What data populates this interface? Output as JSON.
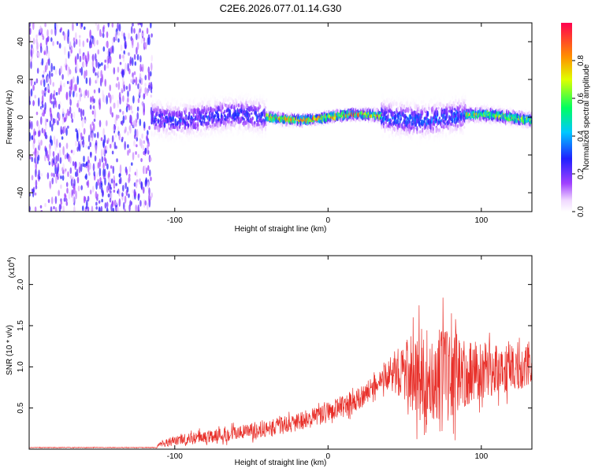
{
  "title": "C2E6.2026.077.01.14.G30",
  "chart_data": [
    {
      "type": "heatmap",
      "name": "spectrogram",
      "xlabel": "Height of straight line (km)",
      "ylabel": "Frequency (Hz)",
      "xlim": [
        -195,
        133
      ],
      "ylim": [
        -50,
        50
      ],
      "x_ticks": [
        -100,
        0,
        100
      ],
      "y_ticks": [
        -40,
        -20,
        0,
        20,
        40
      ],
      "x_tick_labels": [
        "-100",
        "0",
        "100"
      ],
      "y_tick_labels": [
        "-40",
        "-20",
        "0",
        "20",
        "40"
      ],
      "colorbar": {
        "label": "Normalized spectral amplitude",
        "range": [
          0.0,
          1.0
        ],
        "ticks": [
          0.0,
          0.2,
          0.4,
          0.6,
          0.8
        ],
        "tick_labels": [
          "0.0",
          "0.2",
          "0.4",
          "0.6",
          "0.8"
        ]
      },
      "regions": [
        {
          "x_range": [
            -195,
            -115
          ],
          "description": "broadband noise",
          "amplitude": 0.15
        },
        {
          "x_range": [
            -115,
            -40
          ],
          "center_freq": 0,
          "half_width": 12,
          "amplitude": 0.3
        },
        {
          "x_range": [
            -40,
            35
          ],
          "center_freq": 0,
          "half_width": 4,
          "amplitude": 0.85
        },
        {
          "x_range": [
            35,
            90
          ],
          "center_freq": 0,
          "half_width": 12,
          "amplitude": 0.35
        },
        {
          "x_range": [
            90,
            133
          ],
          "center_freq": 0,
          "half_width": 5,
          "amplitude": 0.7
        }
      ]
    },
    {
      "type": "line",
      "name": "snr",
      "xlabel": "Height of straight line (km)",
      "ylabel": "SNR (10 * v/v)",
      "y_multiplier": "(x10",
      "y_multiplier_exp": "4",
      "y_multiplier_close": ")",
      "xlim": [
        -195,
        133
      ],
      "ylim": [
        0,
        2.35
      ],
      "x_ticks": [
        -100,
        0,
        100
      ],
      "y_ticks": [
        0.5,
        1.0,
        1.5,
        2.0
      ],
      "x_tick_labels": [
        "-100",
        "0",
        "100"
      ],
      "y_tick_labels": [
        "0.5",
        "1.0",
        "1.5",
        "2.0"
      ],
      "color": "#e8302a",
      "envelope": [
        {
          "x": -195,
          "mean": 0.02,
          "spread": 0.005
        },
        {
          "x": -112,
          "mean": 0.02,
          "spread": 0.005
        },
        {
          "x": -108,
          "mean": 0.08,
          "spread": 0.06
        },
        {
          "x": -80,
          "mean": 0.15,
          "spread": 0.1
        },
        {
          "x": -50,
          "mean": 0.22,
          "spread": 0.12
        },
        {
          "x": -20,
          "mean": 0.32,
          "spread": 0.14
        },
        {
          "x": 0,
          "mean": 0.45,
          "spread": 0.16
        },
        {
          "x": 20,
          "mean": 0.6,
          "spread": 0.18
        },
        {
          "x": 35,
          "mean": 0.85,
          "spread": 0.15
        },
        {
          "x": 45,
          "mean": 0.95,
          "spread": 0.35
        },
        {
          "x": 60,
          "mean": 0.9,
          "spread": 0.7
        },
        {
          "x": 75,
          "mean": 0.9,
          "spread": 0.75
        },
        {
          "x": 95,
          "mean": 0.95,
          "spread": 0.45
        },
        {
          "x": 133,
          "mean": 1.0,
          "spread": 0.3
        }
      ]
    }
  ]
}
